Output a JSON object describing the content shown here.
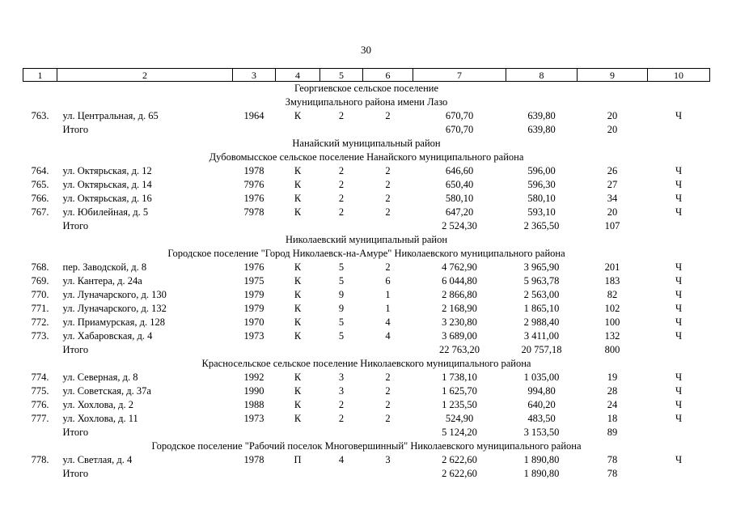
{
  "page_number": "30",
  "table": {
    "header": [
      "1",
      "2",
      "3",
      "4",
      "5",
      "6",
      "7",
      "8",
      "9",
      "10"
    ],
    "cell_names": [
      "row-number",
      "address",
      "year-built",
      "wall-material",
      "floors",
      "entrances",
      "total-area",
      "living-area",
      "residents",
      "ownership-letter"
    ],
    "blocks": [
      {
        "type": "section",
        "text": "Георгиевское сельское поселение"
      },
      {
        "type": "section",
        "text": "Змуниципального района имени Лазо"
      },
      {
        "type": "row",
        "cells": [
          "763.",
          "ул. Центральная, д. 65",
          "1964",
          "К",
          "2",
          "2",
          "670,70",
          "639,80",
          "20",
          "Ч"
        ]
      },
      {
        "type": "total",
        "cells": [
          "",
          "Итого",
          "",
          "",
          "",
          "",
          "670,70",
          "639,80",
          "20",
          ""
        ]
      },
      {
        "type": "section",
        "text": "Нанайский муниципальный район"
      },
      {
        "type": "section",
        "text": "Дубовомысское сельское поселение Нанайского муниципального района"
      },
      {
        "type": "row",
        "cells": [
          "764.",
          "ул. Октярьская, д. 12",
          "1978",
          "К",
          "2",
          "2",
          "646,60",
          "596,00",
          "26",
          "Ч"
        ]
      },
      {
        "type": "row",
        "cells": [
          "765.",
          "ул. Октярьская, д. 14",
          "7976",
          "К",
          "2",
          "2",
          "650,40",
          "596,30",
          "27",
          "Ч"
        ]
      },
      {
        "type": "row",
        "cells": [
          "766.",
          "ул. Октярьская, д. 16",
          "1976",
          "К",
          "2",
          "2",
          "580,10",
          "580,10",
          "34",
          "Ч"
        ]
      },
      {
        "type": "row",
        "cells": [
          "767.",
          "ул. Юбилейная, д. 5",
          "7978",
          "К",
          "2",
          "2",
          "647,20",
          "593,10",
          "20",
          "Ч"
        ]
      },
      {
        "type": "total",
        "cells": [
          "",
          "Итого",
          "",
          "",
          "",
          "",
          "2 524,30",
          "2 365,50",
          "107",
          ""
        ]
      },
      {
        "type": "section",
        "text": "Николаевский муниципальный район"
      },
      {
        "type": "section",
        "text": "Городское поселение \"Город Николаевск-на-Амуре\" Николаевского муниципального района"
      },
      {
        "type": "row",
        "cells": [
          "768.",
          "пер. Заводской, д. 8",
          "1976",
          "К",
          "5",
          "2",
          "4 762,90",
          "3 965,90",
          "201",
          "Ч"
        ]
      },
      {
        "type": "row",
        "cells": [
          "769.",
          "ул. Кантера, д. 24а",
          "1975",
          "К",
          "5",
          "6",
          "6 044,80",
          "5 963,78",
          "183",
          "Ч"
        ]
      },
      {
        "type": "row",
        "cells": [
          "770.",
          "ул. Луначарского, д. 130",
          "1979",
          "К",
          "9",
          "1",
          "2 866,80",
          "2 563,00",
          "82",
          "Ч"
        ]
      },
      {
        "type": "row",
        "cells": [
          "771.",
          "ул. Луначарского, д. 132",
          "1979",
          "К",
          "9",
          "1",
          "2 168,90",
          "1 865,10",
          "102",
          "Ч"
        ]
      },
      {
        "type": "row",
        "cells": [
          "772.",
          "ул. Приамурская, д. 128",
          "1970",
          "К",
          "5",
          "4",
          "3 230,80",
          "2 988,40",
          "100",
          "Ч"
        ]
      },
      {
        "type": "row",
        "cells": [
          "773.",
          "ул. Хабаровская, д. 4",
          "1973",
          "К",
          "5",
          "4",
          "3 689,00",
          "3 411,00",
          "132",
          "Ч"
        ]
      },
      {
        "type": "total",
        "cells": [
          "",
          "Итого",
          "",
          "",
          "",
          "",
          "22 763,20",
          "20 757,18",
          "800",
          ""
        ]
      },
      {
        "type": "section",
        "text": "Красносельское сельское поселение Николаевского муниципального района"
      },
      {
        "type": "row",
        "cells": [
          "774.",
          "ул. Северная, д. 8",
          "1992",
          "К",
          "3",
          "2",
          "1 738,10",
          "1 035,00",
          "19",
          "Ч"
        ]
      },
      {
        "type": "row",
        "cells": [
          "775.",
          "ул. Советская, д. 37а",
          "1990",
          "К",
          "3",
          "2",
          "1 625,70",
          "994,80",
          "28",
          "Ч"
        ]
      },
      {
        "type": "row",
        "cells": [
          "776.",
          "ул. Хохлова, д. 2",
          "1988",
          "К",
          "2",
          "2",
          "1 235,50",
          "640,20",
          "24",
          "Ч"
        ]
      },
      {
        "type": "row",
        "cells": [
          "777.",
          "ул. Хохлова, д. 11",
          "1973",
          "К",
          "2",
          "2",
          "524,90",
          "483,50",
          "18",
          "Ч"
        ]
      },
      {
        "type": "total",
        "cells": [
          "",
          "Итого",
          "",
          "",
          "",
          "",
          "5 124,20",
          "3 153,50",
          "89",
          ""
        ]
      },
      {
        "type": "section",
        "text": "Городское поселение \"Рабочий поселок Многовершинный\" Николаевского муниципального района"
      },
      {
        "type": "row",
        "cells": [
          "778.",
          "ул. Светлая, д. 4",
          "1978",
          "П",
          "4",
          "3",
          "2 622,60",
          "1 890,80",
          "78",
          "Ч"
        ]
      },
      {
        "type": "total",
        "cells": [
          "",
          "Итого",
          "",
          "",
          "",
          "",
          "2 622,60",
          "1 890,80",
          "78",
          ""
        ]
      }
    ]
  }
}
